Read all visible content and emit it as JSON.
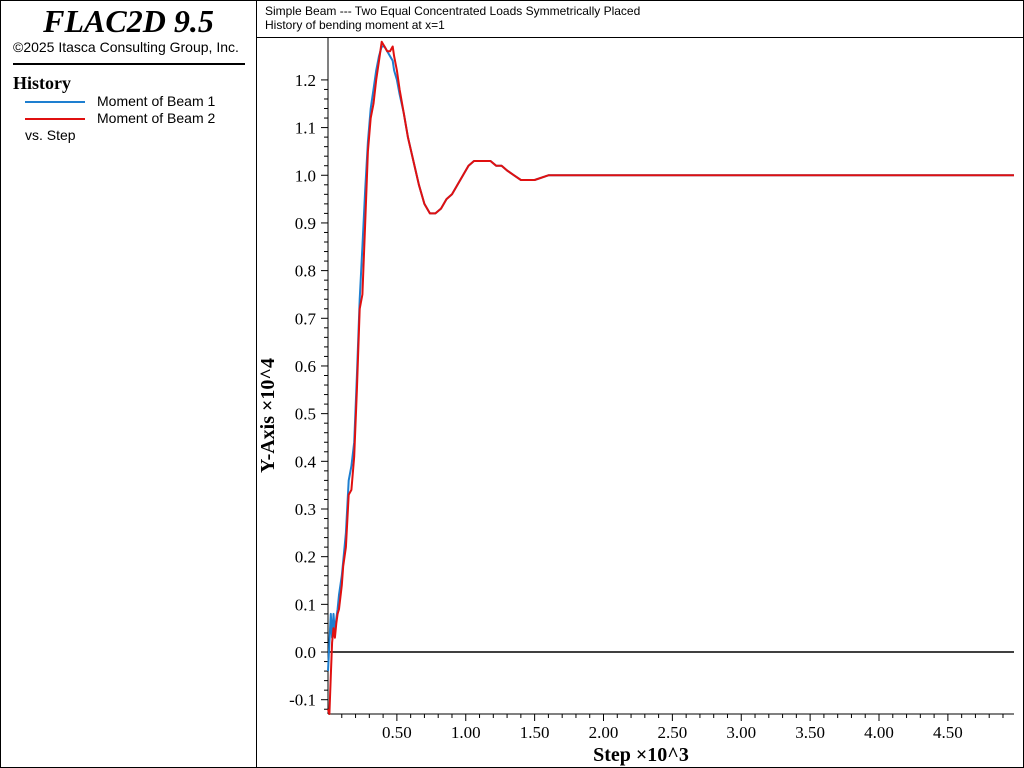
{
  "app": {
    "title": "FLAC2D 9.5",
    "copyright": "©2025 Itasca Consulting Group, Inc."
  },
  "legend": {
    "heading": "History",
    "items": [
      {
        "label": "Moment of Beam 1",
        "color": "#1e7fd0"
      },
      {
        "label": "Moment of Beam 2",
        "color": "#e01010"
      }
    ],
    "vs": "vs. Step"
  },
  "header": {
    "line1": "Simple Beam --- Two Equal Concentrated Loads Symmetrically Placed",
    "line2": "History of bending moment at x=1"
  },
  "chart_data": {
    "type": "line",
    "xlabel": "Step ×10^3",
    "ylabel": "Y-Axis ×10^4",
    "xlim": [
      0.0,
      4.98
    ],
    "ylim": [
      -0.13,
      1.29
    ],
    "xticks": [
      "0.50",
      "1.00",
      "1.50",
      "2.00",
      "2.50",
      "3.00",
      "3.50",
      "4.00",
      "4.50"
    ],
    "yticks": [
      "-0.1",
      "0.0",
      "0.1",
      "0.2",
      "0.3",
      "0.4",
      "0.5",
      "0.6",
      "0.7",
      "0.8",
      "0.9",
      "1.0",
      "1.1",
      "1.2"
    ],
    "grid": false,
    "zero_line": true,
    "series": [
      {
        "name": "Moment of Beam 1",
        "color": "#1e7fd0",
        "x": [
          0.0,
          0.01,
          0.02,
          0.03,
          0.04,
          0.05,
          0.06,
          0.07,
          0.08,
          0.1,
          0.11,
          0.13,
          0.15,
          0.17,
          0.19,
          0.21,
          0.23,
          0.25,
          0.27,
          0.29,
          0.31,
          0.33,
          0.35,
          0.37,
          0.39,
          0.41,
          0.43,
          0.45,
          0.47,
          0.48,
          0.5,
          0.52,
          0.55,
          0.58,
          0.62,
          0.66,
          0.7,
          0.74,
          0.78,
          0.82,
          0.86,
          0.9,
          0.94,
          0.98,
          1.02,
          1.06,
          1.1,
          1.14,
          1.18,
          1.22,
          1.26,
          1.3,
          1.35,
          1.4,
          1.45,
          1.5,
          1.6,
          1.7,
          1.8,
          1.9,
          2.0,
          2.2,
          2.4,
          2.6,
          2.8,
          3.0,
          3.2,
          3.4,
          3.6,
          3.8,
          4.0,
          4.2,
          4.4,
          4.6,
          4.8,
          4.98
        ],
        "y": [
          -0.04,
          0.02,
          0.08,
          0.03,
          0.08,
          0.04,
          0.07,
          0.09,
          0.12,
          0.16,
          0.19,
          0.25,
          0.36,
          0.39,
          0.44,
          0.58,
          0.74,
          0.85,
          0.97,
          1.07,
          1.14,
          1.18,
          1.22,
          1.25,
          1.27,
          1.27,
          1.26,
          1.25,
          1.24,
          1.22,
          1.2,
          1.17,
          1.13,
          1.08,
          1.03,
          0.98,
          0.94,
          0.92,
          0.92,
          0.93,
          0.95,
          0.96,
          0.98,
          1.0,
          1.02,
          1.03,
          1.03,
          1.03,
          1.03,
          1.02,
          1.02,
          1.01,
          1.0,
          0.99,
          0.99,
          0.99,
          1.0,
          1.0,
          1.0,
          1.0,
          1.0,
          1.0,
          1.0,
          1.0,
          1.0,
          1.0,
          1.0,
          1.0,
          1.0,
          1.0,
          1.0,
          1.0,
          1.0,
          1.0,
          1.0,
          1.0
        ]
      },
      {
        "name": "Moment of Beam 2",
        "color": "#e01010",
        "x": [
          0.0,
          0.01,
          0.02,
          0.03,
          0.04,
          0.05,
          0.06,
          0.07,
          0.08,
          0.1,
          0.11,
          0.13,
          0.15,
          0.17,
          0.19,
          0.21,
          0.23,
          0.25,
          0.27,
          0.29,
          0.31,
          0.33,
          0.35,
          0.37,
          0.39,
          0.41,
          0.43,
          0.45,
          0.47,
          0.48,
          0.5,
          0.52,
          0.55,
          0.58,
          0.62,
          0.66,
          0.7,
          0.74,
          0.78,
          0.82,
          0.86,
          0.9,
          0.94,
          0.98,
          1.02,
          1.06,
          1.1,
          1.14,
          1.18,
          1.22,
          1.26,
          1.3,
          1.35,
          1.4,
          1.45,
          1.5,
          1.6,
          1.7,
          1.8,
          1.9,
          2.0,
          2.2,
          2.4,
          2.6,
          2.8,
          3.0,
          3.2,
          3.4,
          3.6,
          3.8,
          4.0,
          4.2,
          4.4,
          4.6,
          4.8,
          4.98
        ],
        "y": [
          -0.12,
          -0.13,
          -0.05,
          0.02,
          0.05,
          0.03,
          0.06,
          0.08,
          0.09,
          0.14,
          0.18,
          0.22,
          0.33,
          0.34,
          0.41,
          0.55,
          0.72,
          0.75,
          0.9,
          1.05,
          1.12,
          1.15,
          1.2,
          1.24,
          1.28,
          1.27,
          1.26,
          1.26,
          1.27,
          1.25,
          1.22,
          1.18,
          1.13,
          1.08,
          1.03,
          0.98,
          0.94,
          0.92,
          0.92,
          0.93,
          0.95,
          0.96,
          0.98,
          1.0,
          1.02,
          1.03,
          1.03,
          1.03,
          1.03,
          1.02,
          1.02,
          1.01,
          1.0,
          0.99,
          0.99,
          0.99,
          1.0,
          1.0,
          1.0,
          1.0,
          1.0,
          1.0,
          1.0,
          1.0,
          1.0,
          1.0,
          1.0,
          1.0,
          1.0,
          1.0,
          1.0,
          1.0,
          1.0,
          1.0,
          1.0,
          1.0
        ]
      }
    ]
  }
}
